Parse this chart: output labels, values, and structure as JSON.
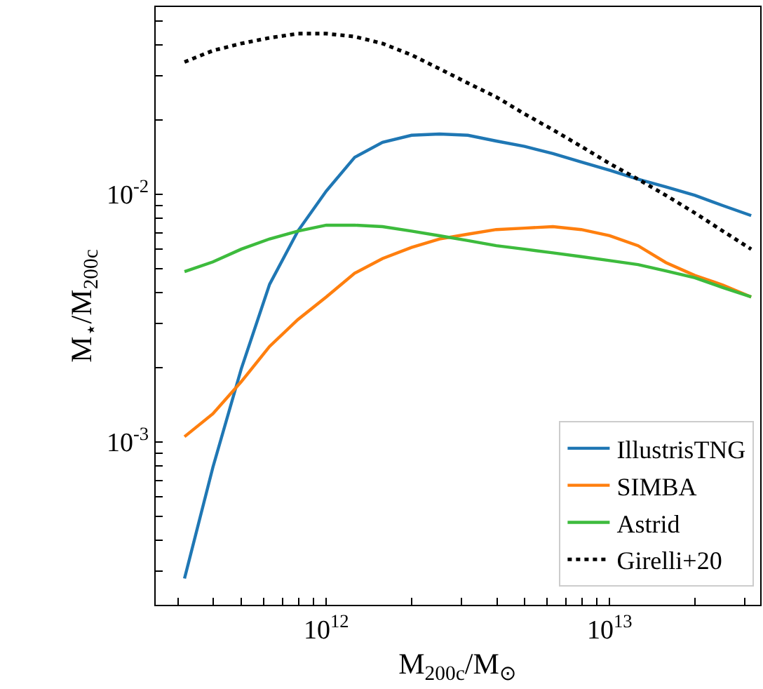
{
  "chart_data": {
    "type": "line",
    "xlabel": "M$_{200c}$/M$_{⊙}$",
    "ylabel": "M$_{⋆}$/M$_{200c}$",
    "log": "xy",
    "legend": "bottom right",
    "marker": "none",
    "x": [
      316000000000.0,
      398000000000.0,
      501000000000.0,
      631000000000.0,
      794000000000.0,
      1000000000000.0,
      1260000000000.0,
      1580000000000.0,
      2000000000000.0,
      2510000000000.0,
      3160000000000.0,
      3980000000000.0,
      5010000000000.0,
      6310000000000.0,
      7940000000000.0,
      10000000000000.0,
      12600000000000.0,
      15800000000000.0,
      20000000000000.0,
      25100000000000.0,
      31600000000000.0
    ],
    "xlim": [
      250000000000.0,
      34000000000000.0
    ],
    "ylim": [
      0.00022,
      0.057
    ],
    "xticks": [
      {
        "value": 300000000000.0,
        "label": null
      },
      {
        "value": 400000000000.0,
        "label": null
      },
      {
        "value": 500000000000.0,
        "label": null
      },
      {
        "value": 600000000000.0,
        "label": null
      },
      {
        "value": 700000000000.0,
        "label": null
      },
      {
        "value": 800000000000.0,
        "label": null
      },
      {
        "value": 900000000000.0,
        "label": null
      },
      {
        "value": 1000000000000.0,
        "label": "10$^{12}$"
      },
      {
        "value": 2000000000000.0,
        "label": null
      },
      {
        "value": 3000000000000.0,
        "label": null
      },
      {
        "value": 4000000000000.0,
        "label": null
      },
      {
        "value": 5000000000000.0,
        "label": null
      },
      {
        "value": 6000000000000.0,
        "label": null
      },
      {
        "value": 7000000000000.0,
        "label": null
      },
      {
        "value": 8000000000000.0,
        "label": null
      },
      {
        "value": 9000000000000.0,
        "label": null
      },
      {
        "value": 10000000000000.0,
        "label": "10$^{13}$"
      },
      {
        "value": 20000000000000.0,
        "label": null
      },
      {
        "value": 30000000000000.0,
        "label": null
      }
    ],
    "yticks": [
      {
        "value": 0.0003,
        "label": null
      },
      {
        "value": 0.0004,
        "label": null
      },
      {
        "value": 0.0005,
        "label": null
      },
      {
        "value": 0.0006,
        "label": null
      },
      {
        "value": 0.0007,
        "label": null
      },
      {
        "value": 0.0008,
        "label": null
      },
      {
        "value": 0.0009,
        "label": null
      },
      {
        "value": 0.001,
        "label": "10$^{-3}$"
      },
      {
        "value": 0.002,
        "label": null
      },
      {
        "value": 0.003,
        "label": null
      },
      {
        "value": 0.004,
        "label": null
      },
      {
        "value": 0.005,
        "label": null
      },
      {
        "value": 0.006,
        "label": null
      },
      {
        "value": 0.007,
        "label": null
      },
      {
        "value": 0.008,
        "label": null
      },
      {
        "value": 0.009,
        "label": null
      },
      {
        "value": 0.01,
        "label": "10$^{-2}$"
      },
      {
        "value": 0.02,
        "label": null
      },
      {
        "value": 0.03,
        "label": null
      },
      {
        "value": 0.04,
        "label": null
      },
      {
        "value": 0.05,
        "label": null
      }
    ],
    "series": [
      {
        "name": "IllustrisTNG",
        "color": "#1f77b4",
        "line_style": "solid",
        "values": [
          0.000281,
          0.00079,
          0.00197,
          0.00433,
          0.0071,
          0.0103,
          0.0141,
          0.0162,
          0.0173,
          0.0175,
          0.0173,
          0.0164,
          0.0156,
          0.0146,
          0.0135,
          0.0125,
          0.0115,
          0.0107,
          0.0099,
          0.009,
          0.0082
        ]
      },
      {
        "name": "SIMBA",
        "color": "#ff7f0e",
        "line_style": "solid",
        "values": [
          0.00105,
          0.0013,
          0.00175,
          0.00243,
          0.00312,
          0.00385,
          0.0048,
          0.0055,
          0.0061,
          0.0066,
          0.0069,
          0.0072,
          0.0073,
          0.0074,
          0.0072,
          0.0068,
          0.0062,
          0.0053,
          0.0047,
          0.0043,
          0.00385
        ]
      },
      {
        "name": "Astrid",
        "color": "#3dbb3d",
        "line_style": "solid",
        "values": [
          0.00487,
          0.00533,
          0.006,
          0.0066,
          0.0071,
          0.0075,
          0.0075,
          0.0074,
          0.0071,
          0.0068,
          0.0065,
          0.0062,
          0.006,
          0.0058,
          0.0056,
          0.0054,
          0.0052,
          0.0049,
          0.0046,
          0.0042,
          0.00385
        ]
      },
      {
        "name": "Girelli+20",
        "color": "#000000",
        "line_style": "dotted",
        "values": [
          0.0342,
          0.038,
          0.0406,
          0.0428,
          0.0445,
          0.0445,
          0.0433,
          0.0406,
          0.0365,
          0.0321,
          0.0281,
          0.0247,
          0.0211,
          0.0182,
          0.0156,
          0.0133,
          0.0115,
          0.0099,
          0.0084,
          0.0071,
          0.006
        ]
      }
    ]
  }
}
